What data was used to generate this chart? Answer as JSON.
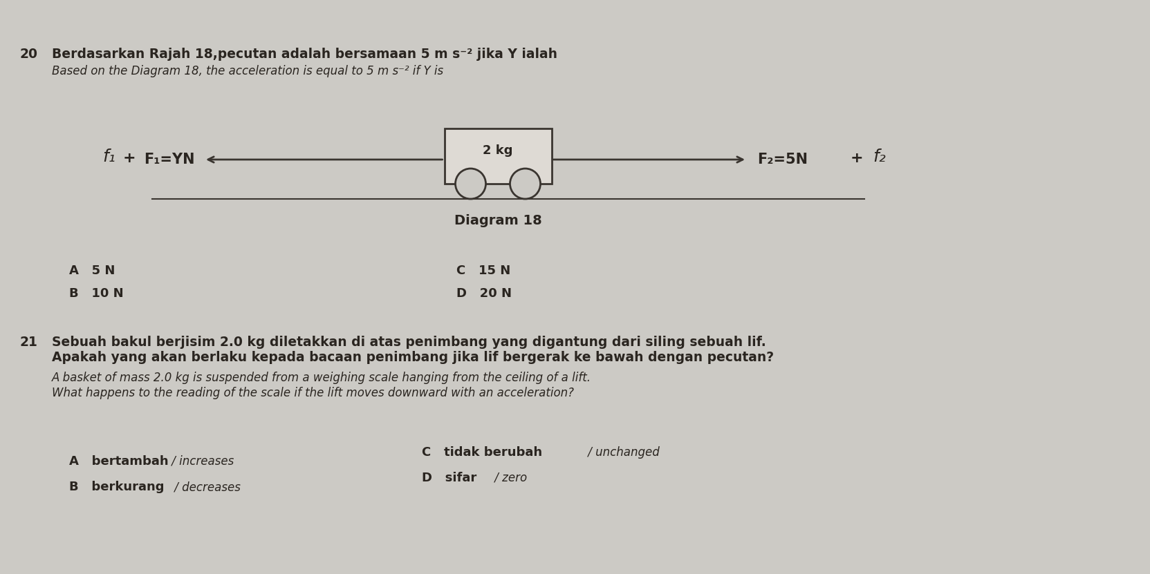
{
  "bg_color": "#cccac5",
  "q20_number": "20",
  "q20_line1": "Berdasarkan Rajah 18,pecutan adalah bersamaan 5 m s⁻² jika Y ialah",
  "q20_line2": "Based on the Diagram 18, the acceleration is equal to 5 m s⁻² if Y is",
  "diagram_label": "2 kg",
  "diagram_caption": "Diagram 18",
  "f1_label": "F₁=YN",
  "f2_label": "F₂=5N",
  "f1_italic": "f₁",
  "f2_italic": "f₂",
  "q20_A": "A   5 N",
  "q20_B": "B   10 N",
  "q20_C": "C   15 N",
  "q20_D": "D   20 N",
  "q21_number": "21",
  "q21_malay1": "Sebuah bakul berjisim 2.0 kg diletakkan di atas penimbang yang digantung dari siling sebuah lif.",
  "q21_malay2": "Apakah yang akan berlaku kepada bacaan penimbang jika lif bergerak ke bawah dengan pecutan?",
  "q21_eng1": "A basket of mass 2.0 kg is suspended from a weighing scale hanging from the ceiling of a lift.",
  "q21_eng2": "What happens to the reading of the scale if the lift moves downward with an acceleration?",
  "q21_A_bold": "A   bertambah",
  "q21_A_italic": " / increases",
  "q21_B_bold": "B   berkurang",
  "q21_B_italic": " / decreases",
  "q21_C_bold": "C   tidak berubah",
  "q21_C_italic": " / unchanged",
  "q21_D_bold": "D   sifar",
  "q21_D_italic": " / zero",
  "text_color": "#2a2520",
  "line_color": "#3a3530",
  "fs_title": 13.5,
  "fs_italic": 12,
  "fs_option": 13,
  "fs_diag": 13,
  "fs_f": 15,
  "fs_f_italic": 18
}
